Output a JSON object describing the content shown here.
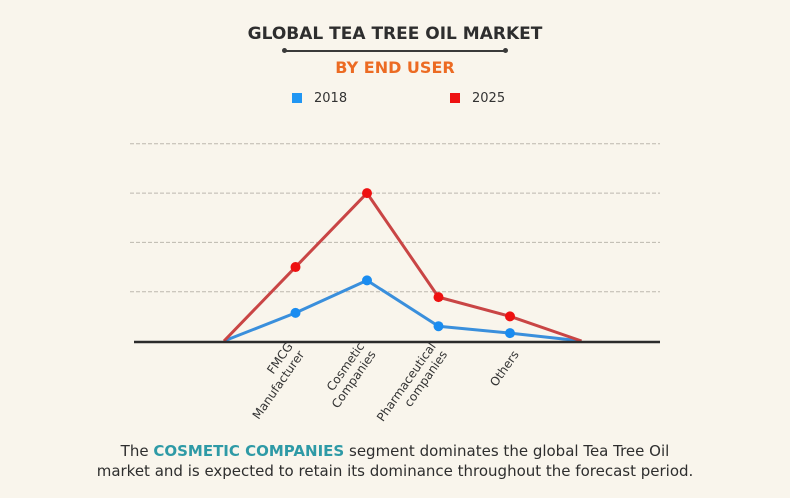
{
  "chart_data": {
    "type": "line",
    "title": "GLOBAL TEA TREE OIL MARKET",
    "subtitle": "BY END USER",
    "xlabel": "",
    "ylabel": "",
    "x_unit_note": "No y-axis tick labels shown; values are relative, in gridline units",
    "categories": [
      "",
      "FMCG Manufacturer",
      "Cosmetic Companies",
      "Pharmaceutical companies",
      "Others",
      ""
    ],
    "category_label_lines": [
      [],
      [
        "FMCG",
        "Manufacturer"
      ],
      [
        "Cosmetic",
        "Companies"
      ],
      [
        "Pharmaceutical",
        "companies"
      ],
      [
        "Others"
      ],
      []
    ],
    "series": [
      {
        "name": "2018",
        "color": "#3a8fdc",
        "marker_color": "#1a8cf0",
        "values": [
          0,
          0.57,
          1.23,
          0.3,
          0.16,
          0
        ]
      },
      {
        "name": "2025",
        "color": "#c94545",
        "marker_color": "#ee1111",
        "values": [
          0,
          1.5,
          3.0,
          0.89,
          0.5,
          0
        ]
      }
    ],
    "markers_on": [
      1,
      2,
      3,
      4
    ],
    "ylim": [
      0,
      4
    ],
    "grid": true,
    "grid_lines": [
      1,
      2,
      3,
      4
    ],
    "legend": [
      {
        "label": "2018",
        "color": "#2196f3"
      },
      {
        "label": "2025",
        "color": "#ee1111"
      }
    ],
    "legend_position": "top"
  },
  "footer": {
    "prefix": "The ",
    "highlight": "COSMETIC COMPANIES",
    "line1_rest": " segment dominates the global Tea Tree Oil",
    "line2": "market and is expected to retain its dominance throughout the forecast period."
  }
}
